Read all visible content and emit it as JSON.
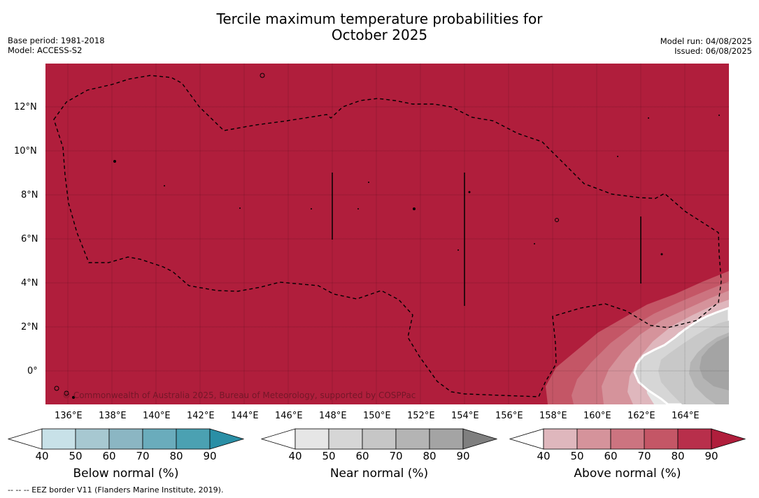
{
  "title": {
    "line1": "Tercile maximum temperature probabilities for",
    "line2": "October 2025"
  },
  "meta": {
    "base_period": "Base period: 1981-2018",
    "model": "Model: ACCESS-S2",
    "model_run": "Model run: 04/08/2025",
    "issued": "Issued: 06/08/2025"
  },
  "map": {
    "lat_labels": [
      "12°N",
      "10°N",
      "8°N",
      "6°N",
      "4°N",
      "2°N",
      "0°"
    ],
    "lon_labels": [
      "136°E",
      "138°E",
      "140°E",
      "142°E",
      "144°E",
      "146°E",
      "148°E",
      "150°E",
      "152°E",
      "154°E",
      "156°E",
      "158°E",
      "160°E",
      "162°E",
      "164°E"
    ],
    "copyright": "© Commonwealth of Australia 2025, Bureau of Meteorology, supported by COSPPac",
    "colors": {
      "above_80_90": "#b01e3c",
      "near_60_70": "#c8c8c8"
    }
  },
  "colorbars": [
    {
      "label": "Below normal (%)",
      "ticks": [
        "40",
        "50",
        "60",
        "70",
        "80",
        "90"
      ],
      "colors": [
        "#ffffff",
        "#c8e1e8",
        "#a7c8d1",
        "#8bb6c3",
        "#6aacbc",
        "#4ba1b2",
        "#2a8fa6"
      ]
    },
    {
      "label": "Near normal (%)",
      "ticks": [
        "40",
        "50",
        "60",
        "70",
        "80",
        "90"
      ],
      "colors": [
        "#ffffff",
        "#e6e6e6",
        "#d6d6d6",
        "#c6c6c6",
        "#b4b4b4",
        "#a4a4a4",
        "#7f7f7f"
      ]
    },
    {
      "label": "Above normal (%)",
      "ticks": [
        "40",
        "50",
        "60",
        "70",
        "80",
        "90"
      ],
      "colors": [
        "#ffffff",
        "#dfb7bd",
        "#d5939b",
        "#cc7480",
        "#c45666",
        "#b82f4b",
        "#b01e3c"
      ]
    }
  ],
  "footer": "--  --  -- EEZ border V11 (Flanders Marine Institute, 2019)."
}
